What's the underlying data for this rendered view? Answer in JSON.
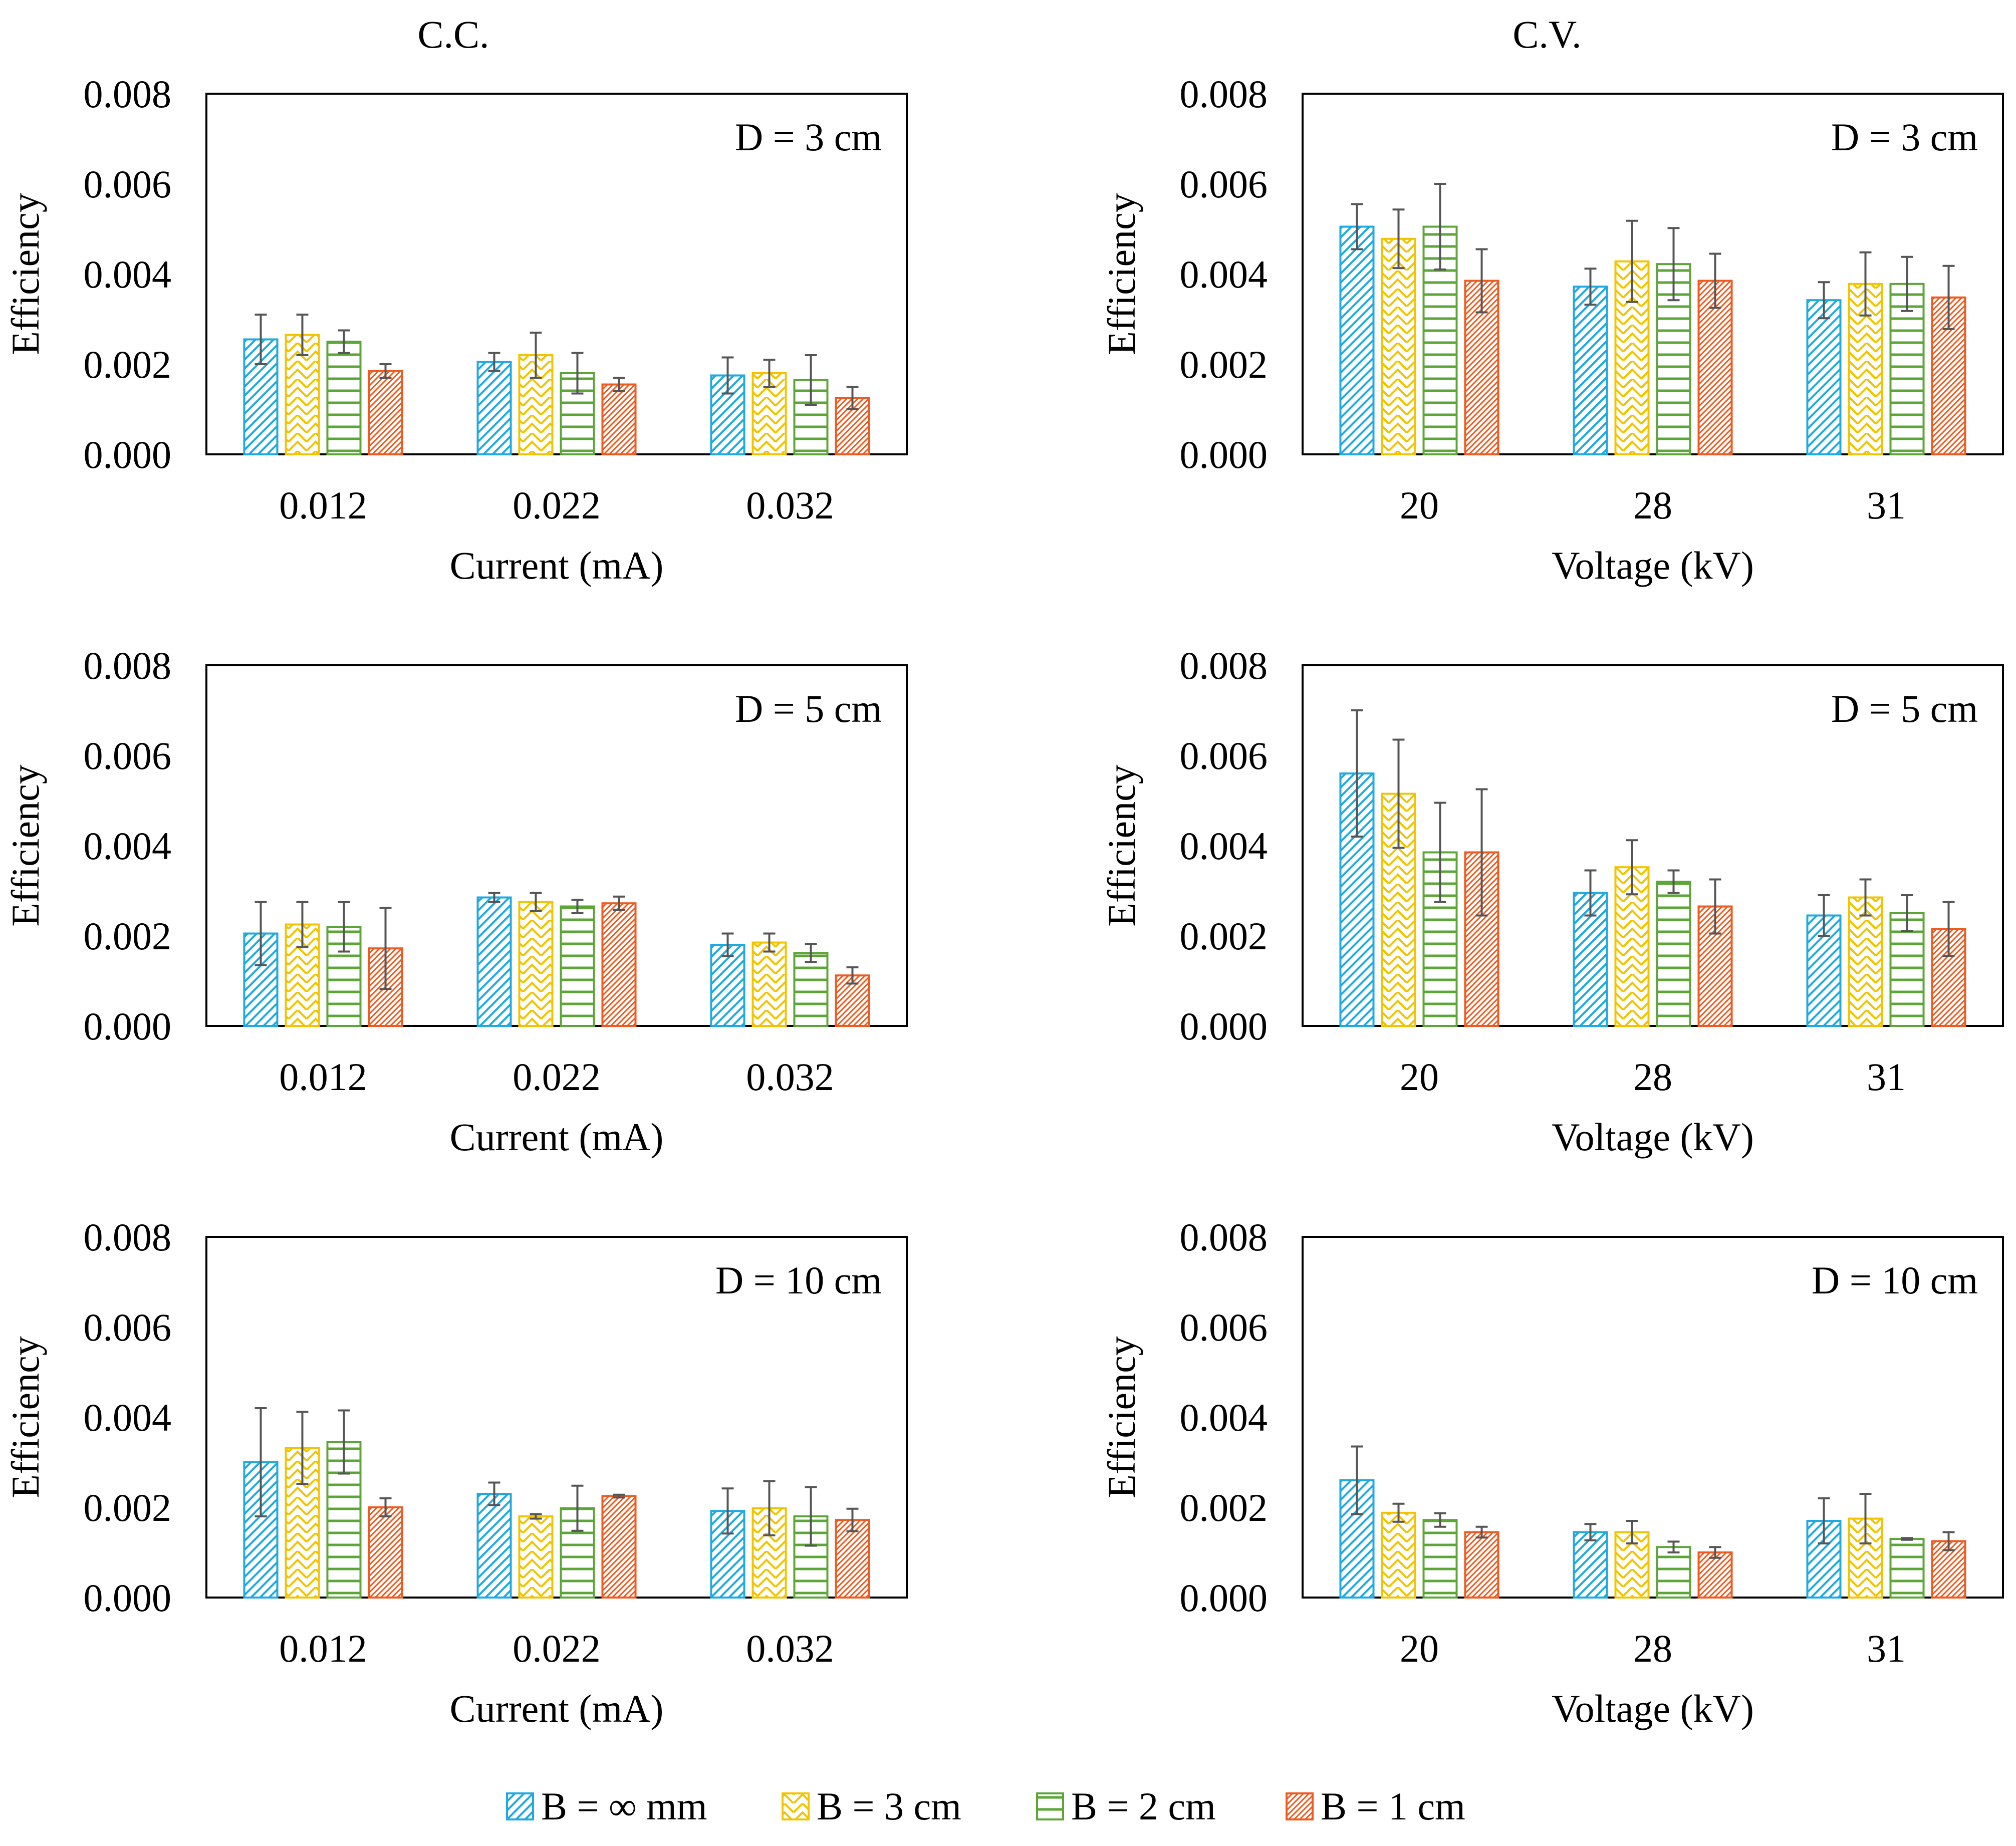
{
  "figure": {
    "column_titles": [
      "C.C.",
      "C.V."
    ],
    "legend": [
      {
        "label": "B = ∞ mm",
        "color": "#1FA9E1",
        "pattern": "diag-up"
      },
      {
        "label": "B = 3 cm",
        "color": "#F2C400",
        "pattern": "zigzag"
      },
      {
        "label": "B = 2 cm",
        "color": "#5BA637",
        "pattern": "horizontal"
      },
      {
        "label": "B = 1 cm",
        "color": "#EE5A1F",
        "pattern": "diag-dense"
      }
    ]
  },
  "chart_data": [
    {
      "type": "bar",
      "column": "C.C.",
      "annotation": "D = 3 cm",
      "categories": [
        "0.012",
        "0.022",
        "0.032"
      ],
      "xlabel": "Current (mA)",
      "ylabel": "Efficiency",
      "ylim": [
        0,
        0.008
      ],
      "yticks": [
        "0.000",
        "0.002",
        "0.004",
        "0.006",
        "0.008"
      ],
      "series": [
        {
          "name": "B = ∞ mm",
          "values": [
            0.00255,
            0.00205,
            0.00175
          ],
          "errors": [
            0.00055,
            0.0002,
            0.0004
          ]
        },
        {
          "name": "B = 3 cm",
          "values": [
            0.00265,
            0.0022,
            0.0018
          ],
          "errors": [
            0.00045,
            0.0005,
            0.0003
          ]
        },
        {
          "name": "B = 2 cm",
          "values": [
            0.0025,
            0.0018,
            0.00165
          ],
          "errors": [
            0.00025,
            0.00045,
            0.00055
          ]
        },
        {
          "name": "B = 1 cm",
          "values": [
            0.00185,
            0.00155,
            0.00125
          ],
          "errors": [
            0.00015,
            0.00015,
            0.00025
          ]
        }
      ]
    },
    {
      "type": "bar",
      "column": "C.V.",
      "annotation": "D = 3 cm",
      "categories": [
        "20",
        "28",
        "31"
      ],
      "xlabel": "Voltage (kV)",
      "ylabel": "Efficiency",
      "ylim": [
        0,
        0.008
      ],
      "yticks": [
        "0.000",
        "0.002",
        "0.004",
        "0.006",
        "0.008"
      ],
      "series": [
        {
          "name": "B = ∞ mm",
          "values": [
            0.00505,
            0.00372,
            0.00342
          ],
          "errors": [
            0.0005,
            0.0004,
            0.0004
          ]
        },
        {
          "name": "B = 3 cm",
          "values": [
            0.00478,
            0.00428,
            0.00378
          ],
          "errors": [
            0.00065,
            0.0009,
            0.0007
          ]
        },
        {
          "name": "B = 2 cm",
          "values": [
            0.00505,
            0.00422,
            0.00378
          ],
          "errors": [
            0.00095,
            0.0008,
            0.0006
          ]
        },
        {
          "name": "B = 1 cm",
          "values": [
            0.00385,
            0.00385,
            0.00348
          ],
          "errors": [
            0.0007,
            0.0006,
            0.0007
          ]
        }
      ]
    },
    {
      "type": "bar",
      "column": "C.C.",
      "annotation": "D = 5 cm",
      "categories": [
        "0.012",
        "0.022",
        "0.032"
      ],
      "xlabel": "Current (mA)",
      "ylabel": "Efficiency",
      "ylim": [
        0,
        0.008
      ],
      "yticks": [
        "0.000",
        "0.002",
        "0.004",
        "0.006",
        "0.008"
      ],
      "series": [
        {
          "name": "B = ∞ mm",
          "values": [
            0.00205,
            0.00285,
            0.0018
          ],
          "errors": [
            0.0007,
            0.0001,
            0.00025
          ]
        },
        {
          "name": "B = 3 cm",
          "values": [
            0.00225,
            0.00275,
            0.00185
          ],
          "errors": [
            0.0005,
            0.0002,
            0.0002
          ]
        },
        {
          "name": "B = 2 cm",
          "values": [
            0.0022,
            0.00265,
            0.00162
          ],
          "errors": [
            0.00055,
            0.00015,
            0.0002
          ]
        },
        {
          "name": "B = 1 cm",
          "values": [
            0.00172,
            0.00272,
            0.00112
          ],
          "errors": [
            0.0009,
            0.00015,
            0.00018
          ]
        }
      ]
    },
    {
      "type": "bar",
      "column": "C.V.",
      "annotation": "D = 5 cm",
      "categories": [
        "20",
        "28",
        "31"
      ],
      "xlabel": "Voltage (kV)",
      "ylabel": "Efficiency",
      "ylim": [
        0,
        0.008
      ],
      "yticks": [
        "0.000",
        "0.002",
        "0.004",
        "0.006",
        "0.008"
      ],
      "series": [
        {
          "name": "B = ∞ mm",
          "values": [
            0.0056,
            0.00295,
            0.00245
          ],
          "errors": [
            0.0014,
            0.0005,
            0.00045
          ]
        },
        {
          "name": "B = 3 cm",
          "values": [
            0.00515,
            0.00352,
            0.00285
          ],
          "errors": [
            0.0012,
            0.0006,
            0.0004
          ]
        },
        {
          "name": "B = 2 cm",
          "values": [
            0.00385,
            0.0032,
            0.0025
          ],
          "errors": [
            0.0011,
            0.00025,
            0.0004
          ]
        },
        {
          "name": "B = 1 cm",
          "values": [
            0.00385,
            0.00265,
            0.00215
          ],
          "errors": [
            0.0014,
            0.0006,
            0.0006
          ]
        }
      ]
    },
    {
      "type": "bar",
      "column": "C.C.",
      "annotation": "D = 10 cm",
      "categories": [
        "0.012",
        "0.022",
        "0.032"
      ],
      "xlabel": "Current (mA)",
      "ylabel": "Efficiency",
      "ylim": [
        0,
        0.008
      ],
      "yticks": [
        "0.000",
        "0.002",
        "0.004",
        "0.006",
        "0.008"
      ],
      "series": [
        {
          "name": "B = ∞ mm",
          "values": [
            0.003,
            0.0023,
            0.00192
          ],
          "errors": [
            0.0012,
            0.00025,
            0.0005
          ]
        },
        {
          "name": "B = 3 cm",
          "values": [
            0.00332,
            0.0018,
            0.00198
          ],
          "errors": [
            0.0008,
            5e-05,
            0.0006
          ]
        },
        {
          "name": "B = 2 cm",
          "values": [
            0.00345,
            0.00198,
            0.0018
          ],
          "errors": [
            0.0007,
            0.0005,
            0.00065
          ]
        },
        {
          "name": "B = 1 cm",
          "values": [
            0.002,
            0.00225,
            0.00172
          ],
          "errors": [
            0.0002,
            3e-05,
            0.00025
          ]
        }
      ]
    },
    {
      "type": "bar",
      "column": "C.V.",
      "annotation": "D = 10 cm",
      "categories": [
        "20",
        "28",
        "31"
      ],
      "xlabel": "Voltage (kV)",
      "ylabel": "Efficiency",
      "ylim": [
        0,
        0.008
      ],
      "yticks": [
        "0.000",
        "0.002",
        "0.004",
        "0.006",
        "0.008"
      ],
      "series": [
        {
          "name": "B = ∞ mm",
          "values": [
            0.0026,
            0.00145,
            0.0017
          ],
          "errors": [
            0.00075,
            0.00018,
            0.0005
          ]
        },
        {
          "name": "B = 3 cm",
          "values": [
            0.00188,
            0.00145,
            0.00175
          ],
          "errors": [
            0.0002,
            0.00025,
            0.00055
          ]
        },
        {
          "name": "B = 2 cm",
          "values": [
            0.00172,
            0.00112,
            0.0013
          ],
          "errors": [
            0.00015,
            0.00012,
            2e-05
          ]
        },
        {
          "name": "B = 1 cm",
          "values": [
            0.00145,
            0.001,
            0.00125
          ],
          "errors": [
            0.00012,
            0.00012,
            0.0002
          ]
        }
      ]
    }
  ]
}
